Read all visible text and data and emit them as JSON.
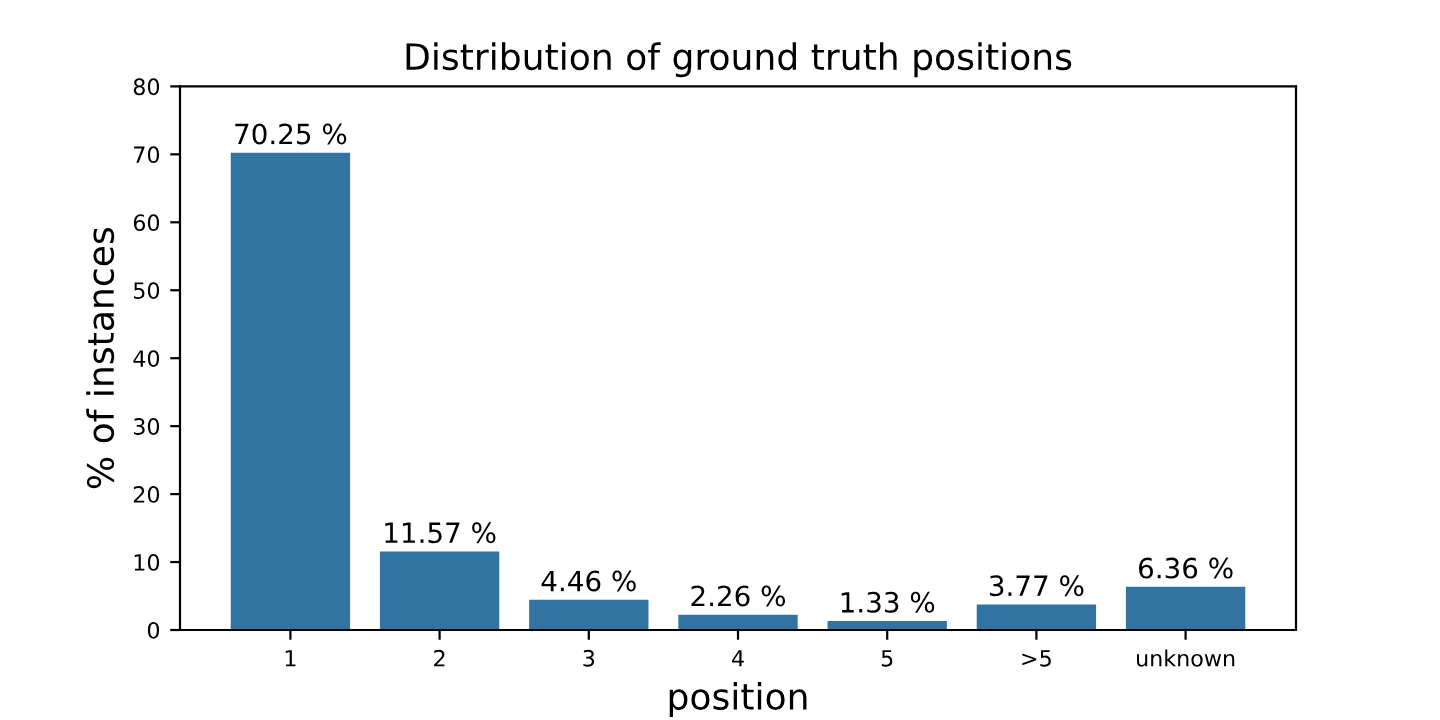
{
  "chart_data": {
    "type": "bar",
    "title": "Distribution of ground truth positions",
    "xlabel": "position",
    "ylabel": "% of instances",
    "categories": [
      "1",
      "2",
      "3",
      "4",
      "5",
      ">5",
      "unknown"
    ],
    "values": [
      70.25,
      11.57,
      4.46,
      2.26,
      1.33,
      3.77,
      6.36
    ],
    "value_labels": [
      "70.25 %",
      "11.57 %",
      "4.46 %",
      "2.26 %",
      "1.33 %",
      "3.77 %",
      "6.36 %"
    ],
    "color": "#3274a1",
    "ylim": [
      0,
      80
    ],
    "yticks": [
      0,
      10,
      20,
      30,
      40,
      50,
      60,
      70,
      80
    ],
    "grid": false,
    "legend": false
  }
}
